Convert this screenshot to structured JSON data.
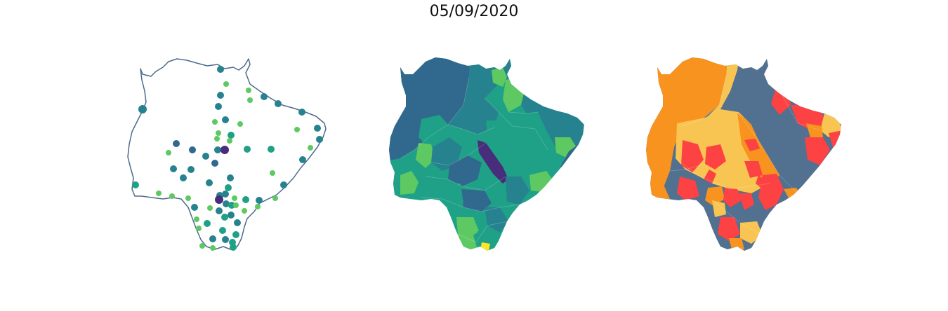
{
  "title": "05/09/2020",
  "colors": {
    "background": "#ffffff",
    "outline": "#4d6a8c",
    "viridis_dark": "#472d7b",
    "viridis_blue": "#31688e",
    "viridis_teal": "#26828e",
    "viridis_green": "#1fa187",
    "viridis_lime": "#5ec962",
    "viridis_yellow": "#fde725",
    "class_orange": "#f7931e",
    "class_yellow": "#f9c552",
    "class_slate": "#52708f",
    "class_red": "#fc4242"
  },
  "maps": [
    {
      "id": "points",
      "type": "proportional-points",
      "description_icon": "state-outline-with-point-markers"
    },
    {
      "id": "choropleth",
      "type": "viridis-choropleth",
      "description_icon": "municipality-choropleth"
    },
    {
      "id": "classes",
      "type": "categorical-choropleth",
      "description_icon": "municipality-class-map"
    }
  ]
}
